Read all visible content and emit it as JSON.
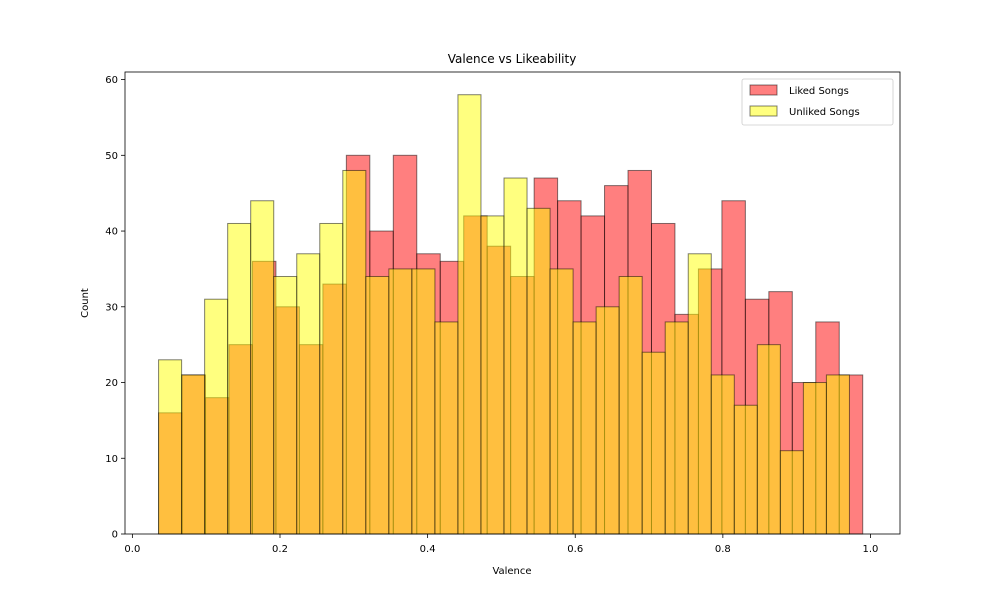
{
  "chart_data": {
    "type": "bar",
    "title": "Valence vs Likeability",
    "xlabel": "Valence",
    "ylabel": "Count",
    "xlim": [
      -0.01,
      1.04
    ],
    "ylim": [
      0,
      61
    ],
    "xticks": [
      "0.0",
      "0.2",
      "0.4",
      "0.6",
      "0.8",
      "1.0"
    ],
    "yticks": [
      "0",
      "10",
      "20",
      "30",
      "40",
      "50",
      "60"
    ],
    "legend_position": "top-right",
    "grid": false,
    "series": [
      {
        "name": "Liked Songs",
        "color": "#ff0000",
        "opacity": 0.5,
        "bin_start": 0.0355,
        "bin_width": 0.0318,
        "values": [
          16,
          21,
          18,
          25,
          36,
          30,
          25,
          33,
          50,
          40,
          50,
          37,
          36,
          42,
          38,
          34,
          47,
          44,
          42,
          46,
          48,
          41,
          29,
          35,
          44,
          31,
          32,
          20,
          28,
          21
        ]
      },
      {
        "name": "Unliked Songs",
        "color": "#ffff00",
        "opacity": 0.5,
        "bin_start": 0.0355,
        "bin_width": 0.0312,
        "values": [
          23,
          21,
          31,
          41,
          44,
          34,
          37,
          41,
          48,
          34,
          35,
          35,
          28,
          58,
          42,
          47,
          43,
          35,
          28,
          30,
          34,
          24,
          28,
          37,
          21,
          17,
          25,
          11,
          20,
          21
        ]
      }
    ]
  }
}
